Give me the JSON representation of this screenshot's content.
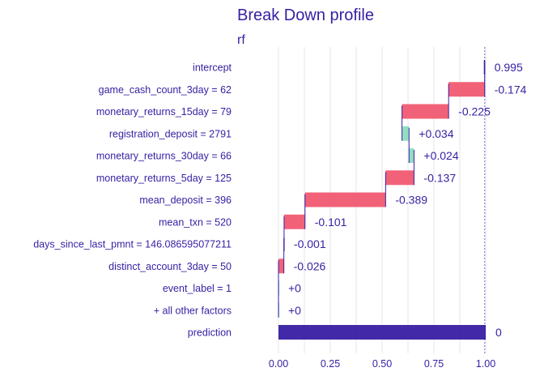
{
  "chart_data": {
    "type": "bar",
    "title": "Break Down profile",
    "subtitle": "rf",
    "xlim": [
      -0.12,
      1.12
    ],
    "x_ticks": [
      0.0,
      0.25,
      0.5,
      0.75,
      1.0
    ],
    "x_tick_labels": [
      "0.00",
      "0.25",
      "0.50",
      "0.75",
      "1.00"
    ],
    "grid": true,
    "rows": [
      {
        "label": "intercept",
        "start": 0.995,
        "end": 0.995,
        "value_label": "0.995",
        "kind": "intercept"
      },
      {
        "label": "game_cash_count_3day = 62",
        "start": 0.995,
        "end": 0.821,
        "value_label": "-0.174",
        "kind": "negative"
      },
      {
        "label": "monetary_returns_15day = 79",
        "start": 0.821,
        "end": 0.596,
        "value_label": "-0.225",
        "kind": "negative"
      },
      {
        "label": "registration_deposit = 2791",
        "start": 0.596,
        "end": 0.63,
        "value_label": "+0.034",
        "kind": "positive"
      },
      {
        "label": "monetary_returns_30day = 66",
        "start": 0.63,
        "end": 0.654,
        "value_label": "+0.024",
        "kind": "positive"
      },
      {
        "label": "monetary_returns_5day = 125",
        "start": 0.654,
        "end": 0.517,
        "value_label": "-0.137",
        "kind": "negative"
      },
      {
        "label": "mean_deposit = 396",
        "start": 0.517,
        "end": 0.128,
        "value_label": "-0.389",
        "kind": "negative"
      },
      {
        "label": "mean_txn = 520",
        "start": 0.128,
        "end": 0.027,
        "value_label": "-0.101",
        "kind": "negative"
      },
      {
        "label": "days_since_last_pmnt = 146.086595077211",
        "start": 0.027,
        "end": 0.026,
        "value_label": "-0.001",
        "kind": "negative"
      },
      {
        "label": "distinct_account_3day = 50",
        "start": 0.026,
        "end": 0.0,
        "value_label": "-0.026",
        "kind": "negative"
      },
      {
        "label": "event_label = 1",
        "start": 0.0,
        "end": 0.0,
        "value_label": "+0",
        "kind": "positive"
      },
      {
        "label": "+ all other factors",
        "start": 0.0,
        "end": 0.0,
        "value_label": "+0",
        "kind": "positive"
      },
      {
        "label": "prediction",
        "start": 0.0,
        "end": 1.0,
        "value_label": "0",
        "kind": "prediction"
      }
    ],
    "colors": {
      "text": "#371ea3",
      "negative": "#f05a71",
      "positive": "#8bdcbe",
      "prediction": "#371ea3",
      "connector": "#371ea3",
      "grid": "#e6e6ec",
      "reference": "#8c84d6"
    }
  }
}
